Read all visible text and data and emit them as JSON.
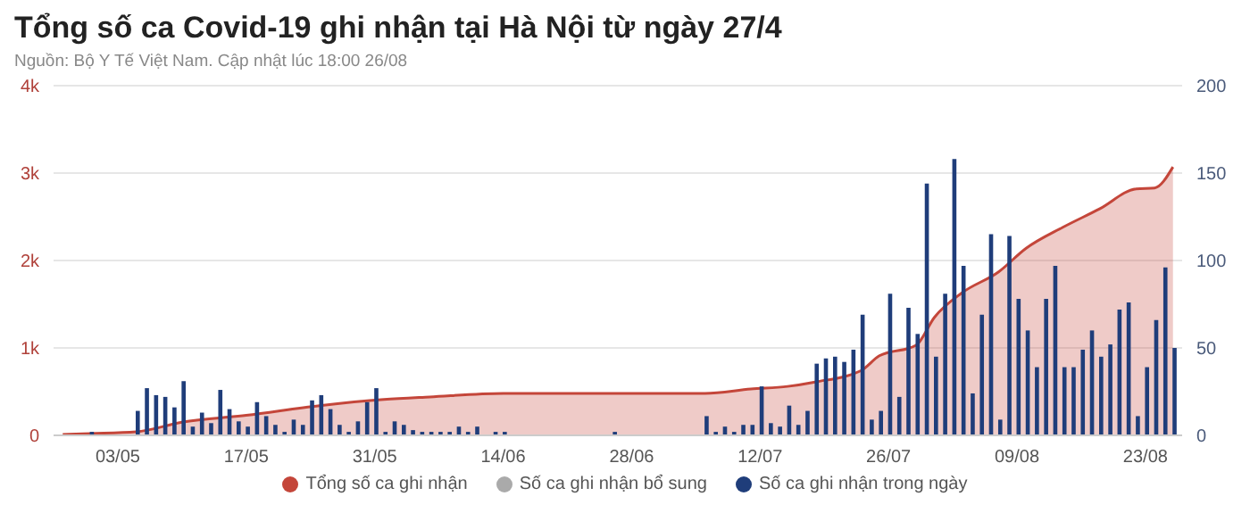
{
  "chart_data": {
    "type": "bar",
    "title": "Tổng số ca Covid-19 ghi nhận tại Hà Nội từ ngày 27/4",
    "subtitle": "Nguồn: Bộ Y Tế Việt Nam. Cập nhật lúc 18:00 26/08",
    "x": [
      "--04-27",
      "--04-28",
      "--04-29",
      "--04-30",
      "--05-01",
      "--05-02",
      "--05-03",
      "--05-04",
      "--05-05",
      "--05-06",
      "--05-07",
      "--05-08",
      "--05-09",
      "--05-10",
      "--05-11",
      "--05-12",
      "--05-13",
      "--05-14",
      "--05-15",
      "--05-16",
      "--05-17",
      "--05-18",
      "--05-19",
      "--05-20",
      "--05-21",
      "--05-22",
      "--05-23",
      "--05-24",
      "--05-25",
      "--05-26",
      "--05-27",
      "--05-28",
      "--05-29",
      "--05-30",
      "--05-31",
      "--06-01",
      "--06-02",
      "--06-03",
      "--06-04",
      "--06-05",
      "--06-06",
      "--06-07",
      "--06-08",
      "--06-09",
      "--06-10",
      "--06-11",
      "--06-12",
      "--06-13",
      "--06-14",
      "--06-15",
      "--06-16",
      "--06-17",
      "--06-18",
      "--06-19",
      "--06-20",
      "--06-21",
      "--06-22",
      "--06-23",
      "--06-24",
      "--06-25",
      "--06-26",
      "--06-27",
      "--06-28",
      "--06-29",
      "--06-30",
      "--07-01",
      "--07-02",
      "--07-03",
      "--07-04",
      "--07-05",
      "--07-06",
      "--07-07",
      "--07-08",
      "--07-09",
      "--07-10",
      "--07-11",
      "--07-12",
      "--07-13",
      "--07-14",
      "--07-15",
      "--07-16",
      "--07-17",
      "--07-18",
      "--07-19",
      "--07-20",
      "--07-21",
      "--07-22",
      "--07-23",
      "--07-24",
      "--07-25",
      "--07-26",
      "--07-27",
      "--07-28",
      "--07-29",
      "--07-30",
      "--07-31",
      "--08-01",
      "--08-02",
      "--08-03",
      "--08-04",
      "--08-05",
      "--08-06",
      "--08-07",
      "--08-08",
      "--08-09",
      "--08-10",
      "--08-11",
      "--08-12",
      "--08-13",
      "--08-14",
      "--08-15",
      "--08-16",
      "--08-17",
      "--08-18",
      "--08-19",
      "--08-20",
      "--08-21",
      "--08-22",
      "--08-23",
      "--08-24",
      "--08-25",
      "--08-26"
    ],
    "series": [
      {
        "name": "Tổng số ca ghi nhận",
        "type": "area",
        "color": "#c4463a",
        "x": [
          "--04-27",
          "--04-30",
          "--05-05",
          "--05-10",
          "--05-17",
          "--05-25",
          "--06-01",
          "--06-06",
          "--06-14",
          "--07-06",
          "--07-11",
          "--07-15",
          "--07-18",
          "--07-23",
          "--07-25",
          "--07-29",
          "--07-31",
          "--08-03",
          "--08-07",
          "--08-10",
          "--08-14",
          "--08-18",
          "--08-22",
          "--08-24",
          "--08-26"
        ],
        "values": [
          10,
          20,
          40,
          150,
          230,
          340,
          410,
          440,
          480,
          480,
          530,
          560,
          610,
          740,
          910,
          1030,
          1350,
          1630,
          1870,
          2140,
          2380,
          2590,
          2820,
          2830,
          3070
        ]
      },
      {
        "name": "Số ca ghi nhận bổ sung",
        "axis": "y2",
        "color": "#aaaaaa",
        "values": [
          null,
          null,
          null,
          null,
          null,
          null,
          null,
          null,
          null,
          null,
          null,
          null,
          null,
          null,
          null,
          null,
          null,
          null,
          null,
          null,
          null,
          null,
          null,
          null,
          null,
          null,
          null,
          null,
          null,
          null,
          null,
          null,
          null,
          null,
          null,
          null,
          null,
          null,
          null,
          null,
          null,
          null,
          null,
          null,
          null,
          null,
          null,
          null,
          null,
          null,
          null,
          null,
          null,
          null,
          null,
          null,
          null,
          null,
          null,
          null,
          null,
          null,
          null,
          null,
          null,
          null,
          null,
          null,
          null,
          null,
          null,
          null,
          null,
          null,
          null,
          null,
          null,
          null,
          null,
          null,
          null,
          null,
          null,
          null,
          null,
          null,
          null,
          null,
          null,
          null,
          null,
          null,
          null,
          null,
          null,
          null,
          null,
          null,
          null,
          null,
          null,
          null,
          null,
          null,
          null,
          null,
          null,
          null,
          null,
          null,
          null,
          null,
          null,
          null,
          null,
          null,
          null,
          null,
          null,
          null,
          null,
          null
        ]
      },
      {
        "name": "Số ca ghi nhận trong ngày",
        "axis": "y2",
        "color": "#1f3d7a",
        "values": [
          0,
          0,
          0,
          2,
          0,
          0,
          0,
          0,
          14,
          27,
          23,
          22,
          16,
          31,
          5,
          13,
          7,
          26,
          15,
          8,
          5,
          19,
          11,
          6,
          2,
          9,
          6,
          20,
          23,
          15,
          6,
          2,
          8,
          19,
          27,
          2,
          8,
          6,
          3,
          2,
          2,
          2,
          2,
          5,
          2,
          5,
          0,
          2,
          2,
          0,
          0,
          0,
          0,
          0,
          0,
          0,
          0,
          0,
          0,
          0,
          2,
          0,
          0,
          0,
          0,
          0,
          0,
          0,
          0,
          0,
          11,
          2,
          5,
          2,
          6,
          6,
          28,
          7,
          5,
          17,
          6,
          14,
          41,
          44,
          45,
          42,
          49,
          69,
          9,
          14,
          81,
          22,
          73,
          58,
          144,
          45,
          81,
          158,
          97,
          24,
          69,
          115,
          9,
          114,
          78,
          60,
          39,
          78,
          97,
          39,
          39,
          49,
          60,
          45,
          52,
          72,
          76,
          11,
          39,
          66,
          96,
          50
        ]
      }
    ],
    "xlim": [
      "--04-26",
      "--08-27"
    ],
    "xticks": [
      {
        "value": "--05-03",
        "label": "03/05"
      },
      {
        "value": "--05-17",
        "label": "17/05"
      },
      {
        "value": "--05-31",
        "label": "31/05"
      },
      {
        "value": "--06-14",
        "label": "14/06"
      },
      {
        "value": "--06-28",
        "label": "28/06"
      },
      {
        "value": "--07-12",
        "label": "12/07"
      },
      {
        "value": "--07-26",
        "label": "26/07"
      },
      {
        "value": "--08-09",
        "label": "09/08"
      },
      {
        "value": "--08-23",
        "label": "23/08"
      }
    ],
    "ylim": [
      0,
      4000
    ],
    "yticks": [
      0,
      {
        "value": 1000,
        "label": "1k"
      },
      {
        "value": 2000,
        "label": "2k"
      },
      {
        "value": 3000,
        "label": "3k"
      },
      {
        "value": 4000,
        "label": "4k"
      }
    ],
    "y2lim": [
      0,
      200
    ],
    "y2ticks": [
      0,
      50,
      100,
      150,
      200
    ],
    "grid": "y",
    "legend": "bottom"
  }
}
